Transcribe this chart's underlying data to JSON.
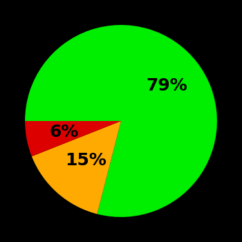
{
  "slices": [
    79,
    15,
    6
  ],
  "colors": [
    "#00ee00",
    "#ffaa00",
    "#dd0000"
  ],
  "labels": [
    "79%",
    "15%",
    "6%"
  ],
  "background_color": "#000000",
  "text_color": "#000000",
  "font_size": 18,
  "font_weight": "bold",
  "startangle": 180,
  "label_r": [
    0.6,
    0.55,
    0.6
  ]
}
